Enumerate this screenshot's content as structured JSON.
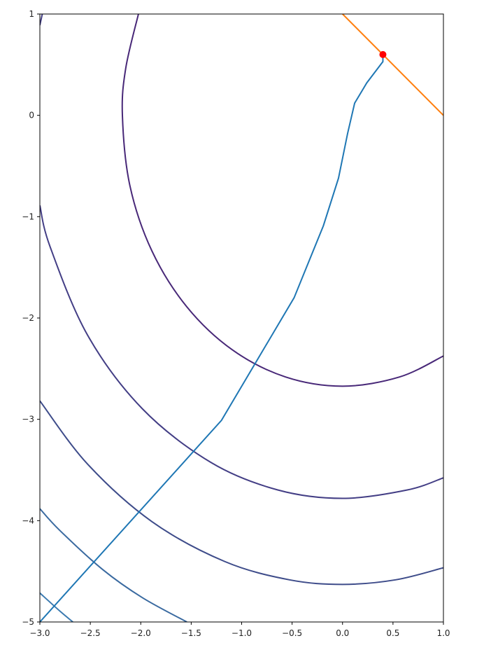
{
  "chart_data": {
    "type": "contour",
    "xlim": [
      -3,
      1
    ],
    "ylim": [
      -5,
      1
    ],
    "xticks": [
      {
        "value": -3,
        "label": "−3.0"
      },
      {
        "value": -2.5,
        "label": "−2.5"
      },
      {
        "value": -2,
        "label": "−2.0"
      },
      {
        "value": -1.5,
        "label": "−1.5"
      },
      {
        "value": -1,
        "label": "−1.0"
      },
      {
        "value": -0.5,
        "label": "−0.5"
      },
      {
        "value": 0,
        "label": "0.0"
      },
      {
        "value": 0.5,
        "label": "0.5"
      },
      {
        "value": 1,
        "label": "1.0"
      }
    ],
    "yticks": [
      1,
      0,
      {
        "value": -1,
        "label": "−1"
      },
      {
        "value": -2,
        "label": "−2"
      },
      {
        "value": -3,
        "label": "−3"
      },
      {
        "value": -4,
        "label": "−4"
      },
      {
        "value": -5,
        "label": "−5"
      }
    ],
    "contours": [
      {
        "color": "#482878",
        "x": [
          -2.023,
          -2.149,
          -2.182,
          -2.108,
          -1.89,
          -1.543,
          -1.091,
          -0.565,
          0,
          0.565,
          1.0
        ],
        "y": [
          1.0,
          0.464,
          0,
          -0.692,
          -1.337,
          -1.89,
          -2.315,
          -2.582,
          -2.673,
          -2.582,
          -2.375
        ]
      },
      {
        "color": "#433e85",
        "x": [
          -2.976,
          -3.0,
          null,
          -3.0,
          -2.9,
          -2.528,
          -1.984,
          -1.304,
          -0.642,
          0,
          0.642,
          1.0
        ],
        "y": [
          1.0,
          0.889,
          null,
          -0.889,
          -1.293,
          -2.168,
          -2.896,
          -3.426,
          -3.697,
          -3.78,
          -3.697,
          -3.577
        ]
      },
      {
        "color": "#3e4c8a",
        "x": [
          -3.0,
          -2.529,
          -1.89,
          -1.168,
          -0.526,
          0,
          0.526,
          1.0
        ],
        "y": [
          -2.818,
          -3.44,
          -4.009,
          -4.403,
          -4.584,
          -4.629,
          -4.584,
          -4.465
        ]
      },
      {
        "color": "#3a6aa0",
        "x": [
          -3.0,
          -2.805,
          -2.377,
          -1.981,
          -1.543
        ],
        "y": [
          -3.882,
          -4.094,
          -4.483,
          -4.762,
          -5.0
        ]
      },
      {
        "color": "#3b7ab0",
        "x": [
          -3.0,
          -2.799,
          -2.673
        ],
        "y": [
          -4.714,
          -4.895,
          -5.0
        ]
      }
    ],
    "lines": [
      {
        "color": "#1f77b4",
        "x": [
          -3.0,
          -1.2,
          -0.48,
          -0.19,
          -0.04,
          0.05,
          0.12,
          0.24,
          0.4,
          0.4
        ],
        "y": [
          -5.0,
          -3.01,
          -1.8,
          -1.09,
          -0.62,
          -0.18,
          0.12,
          0.32,
          0.53,
          0.59
        ]
      },
      {
        "color": "#ff7f0e",
        "x": [
          0,
          1
        ],
        "y": [
          1,
          0
        ]
      }
    ],
    "points": {
      "color": "#ff0000",
      "x": [
        0.4
      ],
      "y": [
        0.6
      ]
    }
  }
}
